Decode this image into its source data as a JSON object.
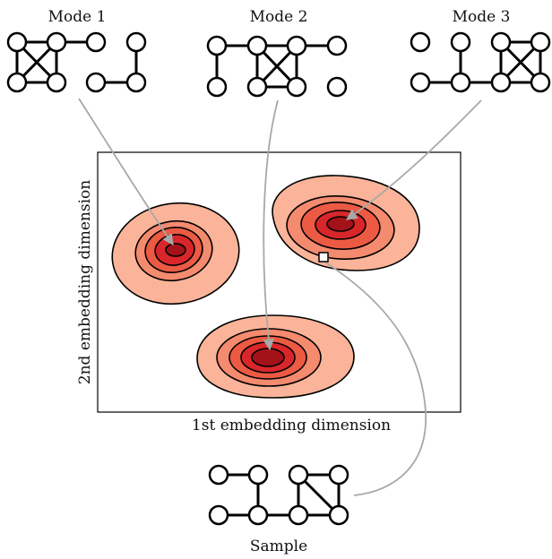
{
  "labels": {
    "mode1": "Mode 1",
    "mode2": "Mode 2",
    "mode3": "Mode 3",
    "xaxis": "1st embedding dimension",
    "yaxis": "2nd embedding dimension",
    "sample": "Sample"
  },
  "colors": {
    "level1": "#fbb499",
    "level2": "#f48a6e",
    "level3": "#ec5a43",
    "level4": "#d8262a",
    "level5": "#a31218",
    "arrow": "#a8a8a8",
    "sample_marker": "#ffffff"
  }
}
